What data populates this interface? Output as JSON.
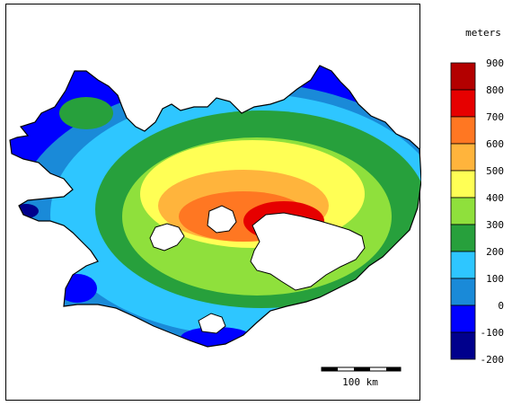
{
  "legend": {
    "unit": "meters",
    "labels": [
      "900",
      "800",
      "700",
      "600",
      "500",
      "400",
      "300",
      "200",
      "100",
      "0",
      "-100",
      "-200"
    ],
    "colors": [
      "#b30000",
      "#e60000",
      "#ff7722",
      "#ffb43c",
      "#ffff55",
      "#8fe03c",
      "#27a03c",
      "#2ec6ff",
      "#1a8ad8",
      "#0000ff",
      "#00008c"
    ]
  },
  "scale_bar": {
    "label": "100 km"
  },
  "map": {
    "subject": "uplift-contour-map"
  }
}
